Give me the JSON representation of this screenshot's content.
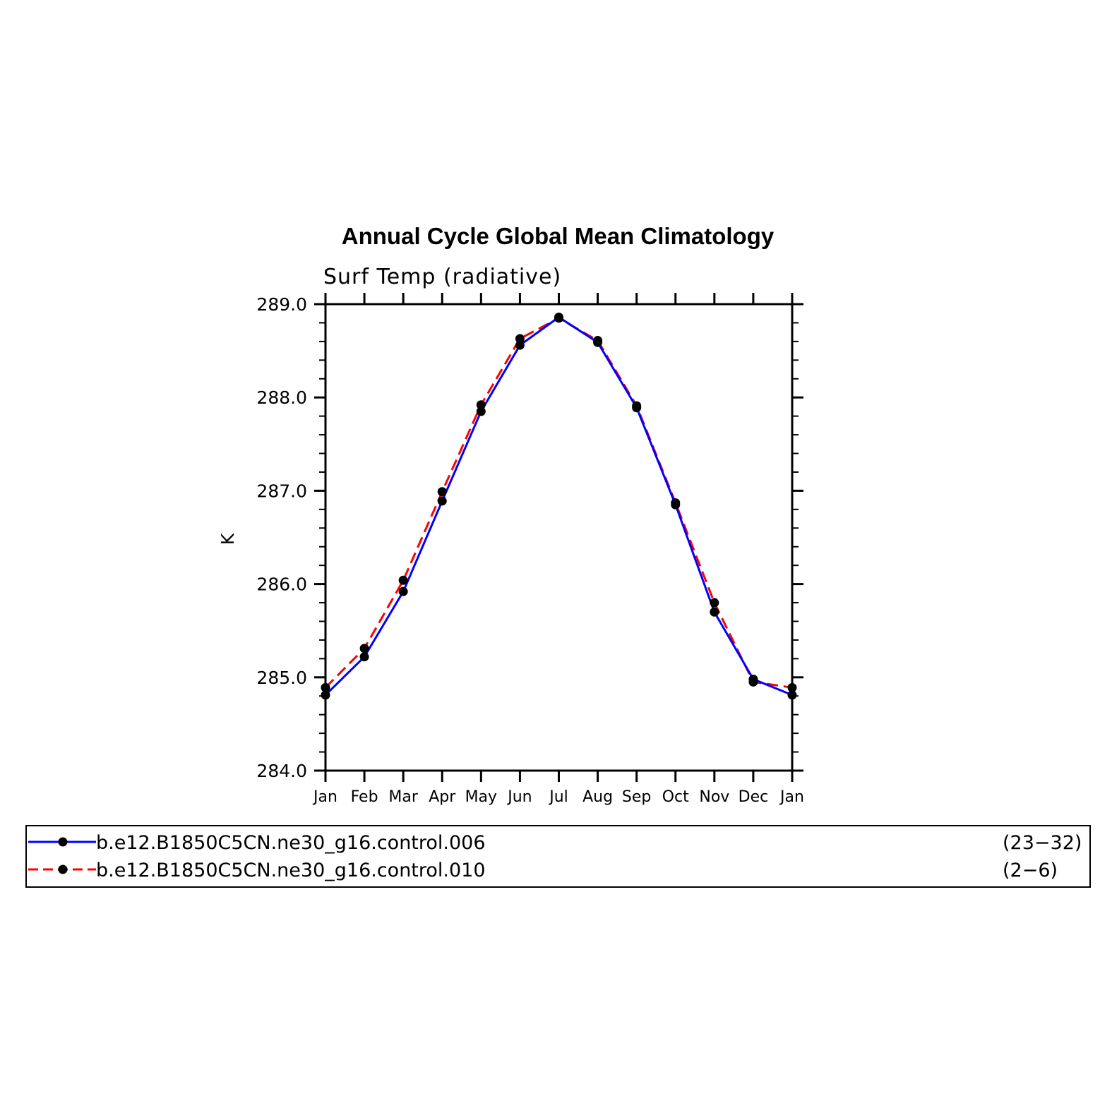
{
  "chart_data": {
    "type": "line",
    "title": "Annual Cycle Global Mean Climatology",
    "subtitle": "Surf Temp (radiative)",
    "xlabel": "",
    "ylabel": "K",
    "categories": [
      "Jan",
      "Feb",
      "Mar",
      "Apr",
      "May",
      "Jun",
      "Jul",
      "Aug",
      "Sep",
      "Oct",
      "Nov",
      "Dec",
      "Jan"
    ],
    "ylim": [
      284.0,
      289.0
    ],
    "yticks": [
      "284.0",
      "285.0",
      "286.0",
      "287.0",
      "288.0",
      "289.0"
    ],
    "grid": false,
    "legend_position": "bottom",
    "series": [
      {
        "name": "b.e12.B1850C5CN.ne30_g16.control.006",
        "years": "(23−32)",
        "color": "#0000ff",
        "dash": "solid",
        "values": [
          284.81,
          285.22,
          285.92,
          286.89,
          287.85,
          288.56,
          288.86,
          288.59,
          287.89,
          286.85,
          285.7,
          284.98,
          284.81
        ]
      },
      {
        "name": "b.e12.B1850C5CN.ne30_g16.control.010",
        "years": "(2−6)",
        "color": "#ff0000",
        "dash": "dashed",
        "values": [
          284.89,
          285.31,
          286.04,
          286.99,
          287.92,
          288.63,
          288.85,
          288.61,
          287.91,
          286.87,
          285.8,
          284.95,
          284.89
        ]
      }
    ]
  }
}
